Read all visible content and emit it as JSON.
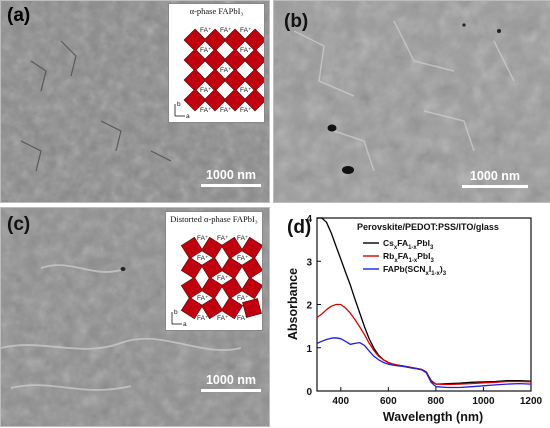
{
  "panels": {
    "a": {
      "label": "(a)",
      "scale": "1000 nm"
    },
    "b": {
      "label": "(b)",
      "scale": "1000 nm"
    },
    "c": {
      "label": "(c)",
      "scale": "1000 nm"
    },
    "d": {
      "label": "(d)"
    }
  },
  "insets": {
    "a": {
      "title": "α-phase FAPbI₃",
      "cation": "FA⁺",
      "axis_b": "b",
      "axis_a": "a"
    },
    "c": {
      "title": "Distorted α-phase FAPbI₃",
      "cation": "FA⁺",
      "axis_b": "b",
      "axis_a": "a"
    }
  },
  "colors": {
    "octahedron": "#c0000f",
    "sem_base": "#8c8c8c"
  },
  "chart_data": {
    "type": "line",
    "title": "Perovskite/PEDOT:PSS/ITO/glass",
    "xlabel": "Wavelength (nm)",
    "ylabel": "Absorbance",
    "xlim": [
      300,
      1200
    ],
    "ylim": [
      0,
      4
    ],
    "xticks": [
      400,
      600,
      800,
      1000,
      1200
    ],
    "yticks": [
      0,
      1,
      2,
      3,
      4
    ],
    "legend_position": "top-right",
    "series": [
      {
        "name": "CsxFA1-xPbI3",
        "name_parts": [
          "Cs",
          "x",
          "FA",
          "1-x",
          "PbI",
          "3"
        ],
        "color": "#000000",
        "x": [
          300,
          320,
          340,
          360,
          380,
          400,
          420,
          440,
          460,
          480,
          500,
          520,
          540,
          560,
          580,
          600,
          620,
          640,
          660,
          680,
          700,
          720,
          740,
          760,
          780,
          800,
          850,
          900,
          950,
          1000,
          1050,
          1100,
          1150,
          1200
        ],
        "y": [
          4.0,
          4.0,
          3.9,
          3.65,
          3.35,
          3.05,
          2.75,
          2.45,
          2.12,
          1.8,
          1.48,
          1.2,
          0.98,
          0.82,
          0.72,
          0.66,
          0.62,
          0.6,
          0.58,
          0.56,
          0.54,
          0.52,
          0.5,
          0.44,
          0.24,
          0.16,
          0.17,
          0.18,
          0.2,
          0.21,
          0.22,
          0.24,
          0.24,
          0.23
        ]
      },
      {
        "name": "RbxFA1-xPbI3",
        "name_parts": [
          "Rb",
          "x",
          "FA",
          "1-x",
          "PbI",
          "3"
        ],
        "color": "#e00000",
        "x": [
          300,
          320,
          340,
          360,
          380,
          400,
          420,
          440,
          460,
          480,
          500,
          520,
          540,
          560,
          580,
          600,
          620,
          640,
          660,
          680,
          700,
          720,
          740,
          760,
          780,
          800,
          850,
          900,
          950,
          1000,
          1050,
          1100,
          1150,
          1200
        ],
        "y": [
          1.7,
          1.78,
          1.88,
          1.96,
          2.0,
          2.0,
          1.92,
          1.8,
          1.65,
          1.48,
          1.3,
          1.1,
          0.93,
          0.8,
          0.72,
          0.66,
          0.62,
          0.6,
          0.58,
          0.56,
          0.54,
          0.52,
          0.5,
          0.43,
          0.22,
          0.16,
          0.15,
          0.16,
          0.17,
          0.19,
          0.2,
          0.22,
          0.22,
          0.21
        ]
      },
      {
        "name": "FAPb(SCNxI1-x)3",
        "name_parts": [
          "FAPb(SCN",
          "x",
          "I",
          "1-x",
          ")",
          "3"
        ],
        "color": "#1f1fe0",
        "x": [
          300,
          320,
          340,
          360,
          380,
          400,
          420,
          440,
          460,
          480,
          500,
          520,
          540,
          560,
          580,
          600,
          620,
          640,
          660,
          680,
          700,
          720,
          740,
          760,
          780,
          800,
          850,
          900,
          950,
          1000,
          1050,
          1100,
          1150,
          1200
        ],
        "y": [
          1.1,
          1.15,
          1.19,
          1.22,
          1.23,
          1.21,
          1.15,
          1.08,
          1.1,
          1.12,
          1.05,
          0.92,
          0.8,
          0.72,
          0.66,
          0.62,
          0.6,
          0.58,
          0.57,
          0.55,
          0.53,
          0.51,
          0.49,
          0.42,
          0.2,
          0.1,
          0.08,
          0.08,
          0.1,
          0.12,
          0.14,
          0.16,
          0.17,
          0.16
        ]
      }
    ]
  }
}
